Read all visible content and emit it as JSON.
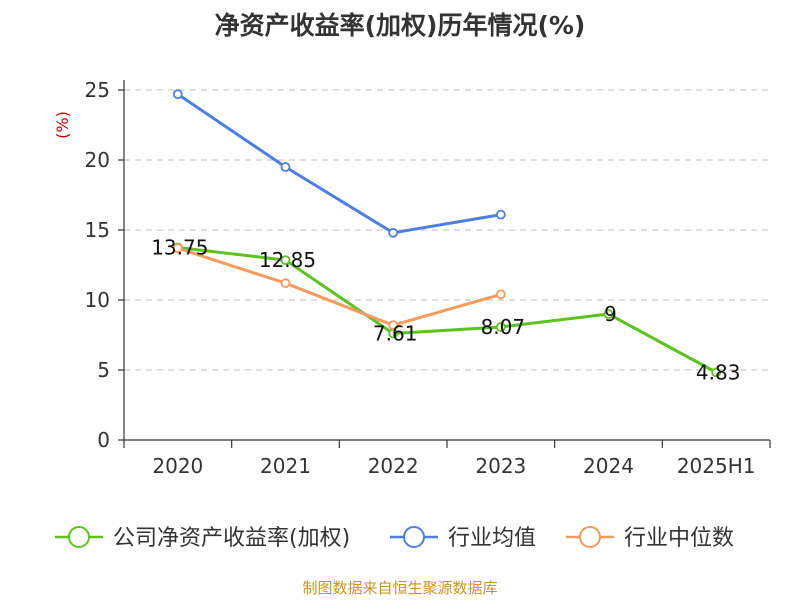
{
  "chart_data": {
    "type": "line",
    "title": "净资产收益率(加权)历年情况(%)",
    "y_unit": "(%)",
    "categories": [
      "2020",
      "2021",
      "2022",
      "2023",
      "2024",
      "2025H1"
    ],
    "ylim": [
      0,
      25
    ],
    "yticks": [
      0,
      5,
      10,
      15,
      20,
      25
    ],
    "grid": true,
    "legend_position": "bottom",
    "series": [
      {
        "name": "公司净资产收益率(加权)",
        "color": "#5cc21f",
        "values": [
          13.75,
          12.85,
          7.61,
          8.07,
          9,
          4.83
        ],
        "labels": [
          "13.75",
          "12.85",
          "7.61",
          "8.07",
          "9",
          "4.83"
        ]
      },
      {
        "name": "行业均值",
        "color": "#4e7fdc",
        "values": [
          24.7,
          19.5,
          14.8,
          16.1,
          null,
          null
        ]
      },
      {
        "name": "行业中位数",
        "color": "#f49a5c",
        "values": [
          13.7,
          11.2,
          8.2,
          10.4,
          null,
          null
        ]
      }
    ],
    "source": "制图数据来自恒生聚源数据库"
  }
}
